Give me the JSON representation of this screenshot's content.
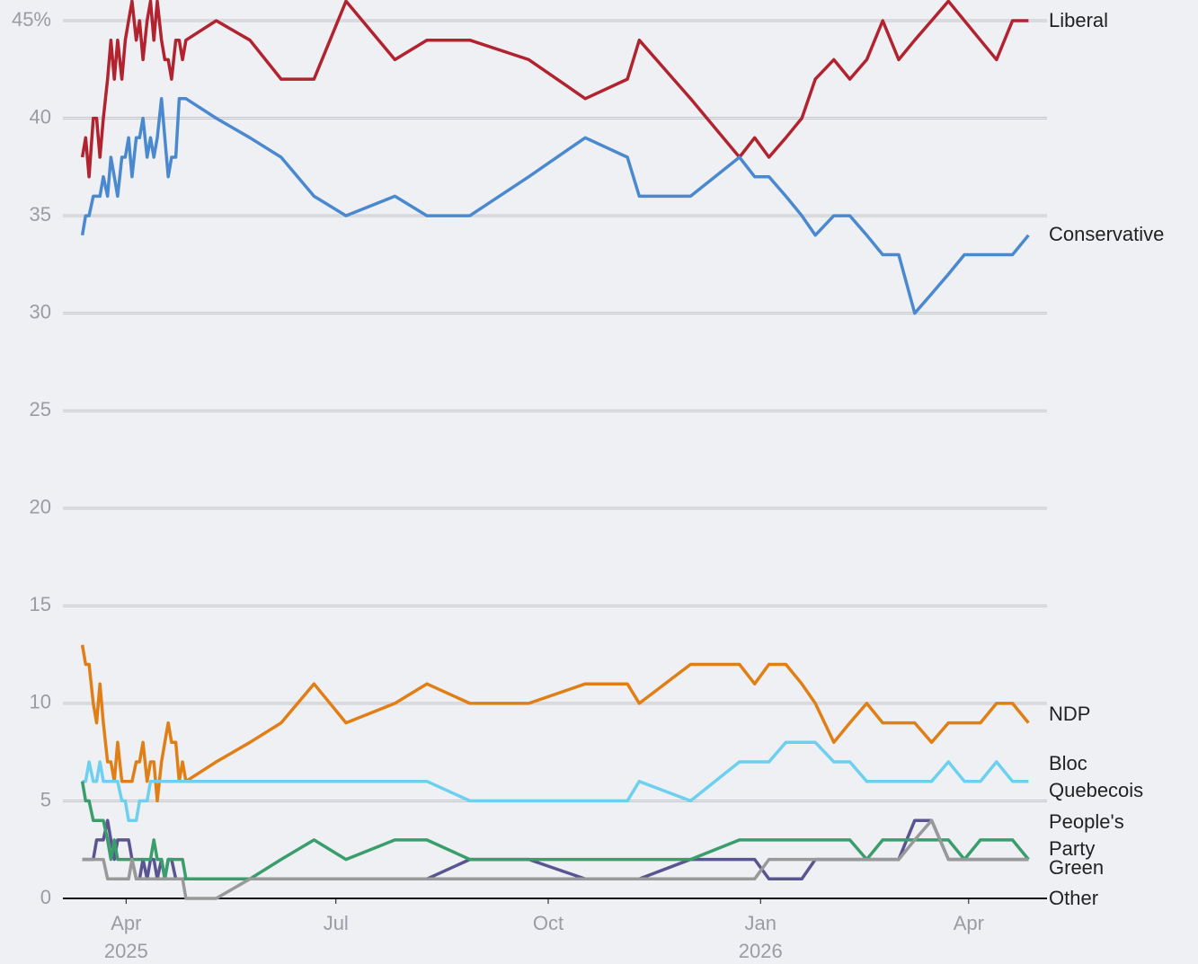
{
  "chart_data": {
    "type": "line",
    "x": [
      2025.195,
      2025.199,
      2025.203,
      2025.208,
      2025.212,
      2025.216,
      2025.22,
      2025.225,
      2025.229,
      2025.233,
      2025.237,
      2025.242,
      2025.246,
      2025.25,
      2025.254,
      2025.259,
      2025.263,
      2025.267,
      2025.272,
      2025.276,
      2025.28,
      2025.284,
      2025.289,
      2025.293,
      2025.297,
      2025.301,
      2025.306,
      2025.31,
      2025.314,
      2025.318,
      2025.354,
      2025.394,
      2025.431,
      2025.47,
      2025.508,
      2025.566,
      2025.604,
      2025.655,
      2025.725,
      2025.792,
      2025.842,
      2025.856,
      2025.917,
      2025.975,
      2025.993,
      2026.01,
      2026.03,
      2026.049,
      2026.065,
      2026.087,
      2026.106,
      2026.126,
      2026.145,
      2026.164,
      2026.183,
      2026.203,
      2026.223,
      2026.242,
      2026.261,
      2026.28,
      2026.299,
      2026.318
    ],
    "series": [
      {
        "name": "Liberal",
        "color": "#b0232f",
        "values": [
          38,
          39,
          37,
          40,
          40,
          38,
          40,
          42,
          44,
          42,
          44,
          42,
          44,
          45,
          46,
          44,
          45,
          43,
          45,
          46,
          44,
          46,
          44,
          43,
          43,
          42,
          44,
          44,
          43,
          44,
          45,
          44,
          42,
          42,
          46,
          43,
          44,
          44,
          43,
          41,
          42,
          44,
          41,
          38,
          39,
          38,
          39,
          40,
          42,
          43,
          42,
          43,
          45,
          43,
          44,
          45,
          46,
          45,
          44,
          43,
          45,
          45
        ]
      },
      {
        "name": "Conservative",
        "color": "#4a89cf",
        "values": [
          34,
          35,
          35,
          36,
          36,
          36,
          37,
          36,
          38,
          37,
          36,
          38,
          38,
          39,
          37,
          39,
          39,
          40,
          38,
          39,
          38,
          39,
          41,
          39,
          37,
          38,
          38,
          41,
          41,
          41,
          40,
          39,
          38,
          36,
          35,
          36,
          35,
          35,
          37,
          39,
          38,
          36,
          36,
          38,
          37,
          37,
          36,
          35,
          34,
          35,
          35,
          34,
          33,
          33,
          30,
          31,
          32,
          33,
          33,
          33,
          33,
          34
        ]
      },
      {
        "name": "NDP",
        "color": "#e07f15",
        "values": [
          13,
          12,
          12,
          10,
          9,
          11,
          9,
          7,
          7,
          6,
          8,
          6,
          6,
          6,
          6,
          7,
          7,
          8,
          6,
          7,
          7,
          5,
          7,
          8,
          9,
          8,
          8,
          6,
          7,
          6,
          7,
          8,
          9,
          11,
          9,
          10,
          11,
          10,
          10,
          11,
          11,
          10,
          12,
          12,
          11,
          12,
          12,
          11,
          10,
          8,
          9,
          10,
          9,
          9,
          9,
          8,
          9,
          9,
          9,
          10,
          10,
          9
        ]
      },
      {
        "name": "Bloc Quebecois",
        "color": "#6cd0ee",
        "values": [
          6,
          6,
          7,
          6,
          6,
          7,
          6,
          6,
          6,
          6,
          6,
          5,
          5,
          4,
          4,
          4,
          5,
          5,
          5,
          6,
          6,
          6,
          6,
          6,
          6,
          6,
          6,
          6,
          6,
          6,
          6,
          6,
          6,
          6,
          6,
          6,
          6,
          5,
          5,
          5,
          5,
          6,
          5,
          7,
          7,
          7,
          8,
          8,
          8,
          7,
          7,
          6,
          6,
          6,
          6,
          6,
          7,
          6,
          6,
          7,
          6,
          6
        ]
      },
      {
        "name": "People's Party",
        "color": "#5a5590",
        "values": [
          2,
          2,
          2,
          2,
          3,
          3,
          3,
          4,
          3,
          2,
          3,
          3,
          3,
          3,
          2,
          1,
          1,
          2,
          1,
          2,
          2,
          1,
          2,
          1,
          2,
          2,
          1,
          1,
          1,
          1,
          1,
          1,
          1,
          1,
          1,
          1,
          1,
          2,
          2,
          1,
          1,
          1,
          2,
          2,
          2,
          1,
          1,
          1,
          2,
          2,
          2,
          2,
          2,
          2,
          4,
          4,
          2,
          2,
          2,
          2,
          2,
          2
        ]
      },
      {
        "name": "Green",
        "color": "#3a9e6c",
        "values": [
          6,
          5,
          5,
          4,
          4,
          4,
          4,
          3,
          2,
          3,
          2,
          2,
          2,
          2,
          2,
          2,
          2,
          2,
          2,
          2,
          3,
          2,
          2,
          1,
          2,
          2,
          2,
          2,
          2,
          1,
          1,
          1,
          2,
          3,
          2,
          3,
          3,
          2,
          2,
          2,
          2,
          2,
          2,
          3,
          3,
          3,
          3,
          3,
          3,
          3,
          3,
          2,
          3,
          3,
          3,
          3,
          3,
          2,
          3,
          3,
          3,
          2
        ]
      },
      {
        "name": "Other",
        "color": "#999999",
        "values": [
          2,
          2,
          2,
          2,
          2,
          2,
          2,
          1,
          1,
          1,
          1,
          1,
          1,
          1,
          2,
          1,
          1,
          1,
          1,
          1,
          1,
          1,
          1,
          1,
          1,
          1,
          1,
          1,
          1,
          0,
          0,
          1,
          1,
          1,
          1,
          1,
          1,
          1,
          1,
          1,
          1,
          1,
          1,
          1,
          1,
          2,
          2,
          2,
          2,
          2,
          2,
          2,
          2,
          2,
          3,
          4,
          2,
          2,
          2,
          2,
          2,
          2
        ]
      }
    ],
    "xlim": [
      2025.172,
      2026.34
    ],
    "xticks": [
      {
        "value": 2025.247,
        "label": "Apr"
      },
      {
        "value": 2025.496,
        "label": "Jul"
      },
      {
        "value": 2025.748,
        "label": "Oct"
      },
      {
        "value": 2026.0,
        "label": "Jan"
      },
      {
        "value": 2026.247,
        "label": "Apr"
      }
    ],
    "xtick_years": [
      {
        "value": 2025.247,
        "label": "2025"
      },
      {
        "value": 2026.0,
        "label": "2026"
      }
    ],
    "ylim": [
      0,
      46
    ],
    "yticks": [
      0,
      5,
      10,
      15,
      20,
      25,
      30,
      35,
      40,
      {
        "value": 45,
        "label": "45%"
      }
    ],
    "grid": true
  }
}
